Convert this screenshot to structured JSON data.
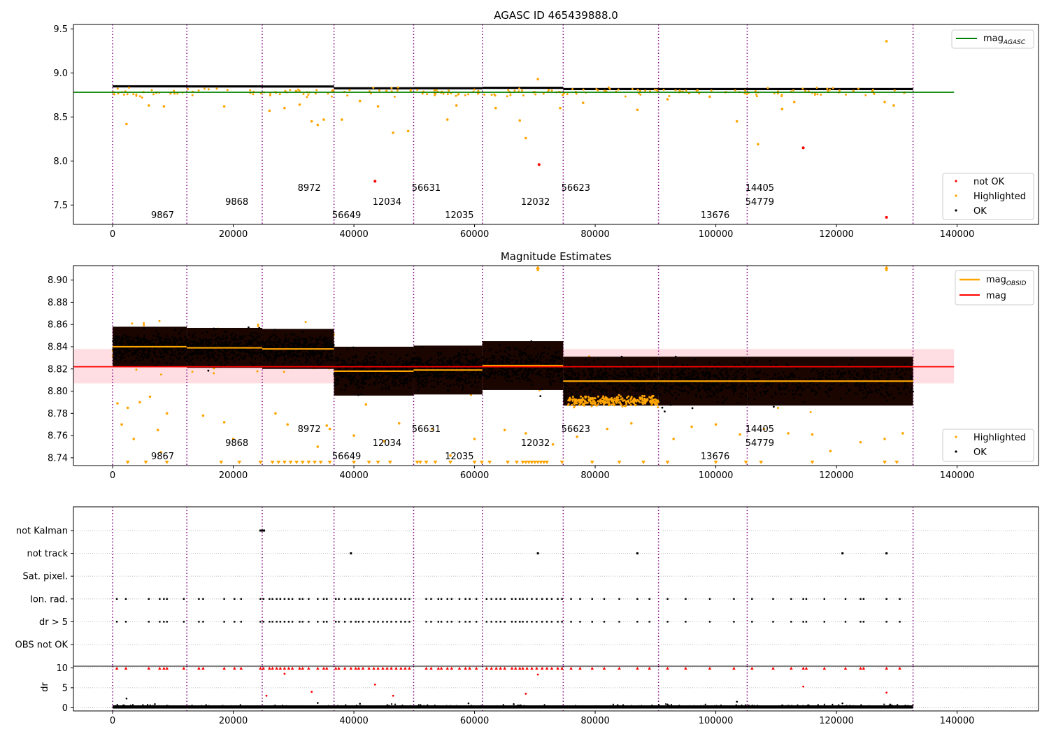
{
  "colors": {
    "ok": "#000000",
    "highlighted": "#ffa500",
    "not_ok": "#ff0000",
    "mag_agasc_line": "#008000",
    "mag_line": "#ff0000",
    "mag_band": "#ffb6c1",
    "mag_obsid_line": "#ffa500",
    "obsid_boundary": "#800080",
    "grid": "#b0b0b0"
  },
  "obsids": [
    {
      "id": "9867",
      "start": 0,
      "end": 12300,
      "mag": 8.84,
      "label_x": 6200,
      "label_row": 2
    },
    {
      "id": "9868",
      "start": 12300,
      "end": 24800,
      "mag": 8.839,
      "label_x": 18500,
      "label_row": 1
    },
    {
      "id": "8972",
      "start": 24800,
      "end": 36700,
      "mag": 8.838,
      "label_x": 30500,
      "label_row": 0
    },
    {
      "id": "56649",
      "start": 36700,
      "end": 49900,
      "mag": 8.818,
      "label_x": 36700,
      "label_row": 2
    },
    {
      "id": "12034",
      "start": 49900,
      "end": 61300,
      "mag": 8.819,
      "label_x": 43400,
      "label_row": 1
    },
    {
      "id": "56631",
      "start": 61300,
      "end": 74700,
      "mag": 8.823,
      "label_x": 49900,
      "label_row": 0
    },
    {
      "id": "12035",
      "start": 74700,
      "end": 90500,
      "mag": 8.809,
      "label_x": 55400,
      "label_row": 2
    },
    {
      "id": "12032",
      "start": 90500,
      "end": 105200,
      "mag": 8.809,
      "label_x": 68000,
      "label_row": 1
    },
    {
      "id": "56623",
      "start": 105200,
      "end": 132700,
      "mag": 8.809,
      "label_x": 74700,
      "label_row": 0
    },
    {
      "id": "13676",
      "start": null,
      "end": null,
      "mag": null,
      "label_x": 97800,
      "label_row": 2
    },
    {
      "id": "14405",
      "start": null,
      "end": null,
      "mag": null,
      "label_x": 105200,
      "label_row": 0
    },
    {
      "id": "54779",
      "start": null,
      "end": null,
      "mag": null,
      "label_x": 105200,
      "label_row": 1
    }
  ],
  "chart_data": [
    {
      "type": "scatter",
      "title": "AGASC ID 465439888.0",
      "xlim": [
        -6500,
        153500
      ],
      "ylim": [
        7.28,
        9.55
      ],
      "xticks": [
        0,
        20000,
        40000,
        60000,
        80000,
        100000,
        120000,
        140000
      ],
      "xtick_labels": [
        "0",
        "20000",
        "40000",
        "60000",
        "80000",
        "100000",
        "120000",
        "140000"
      ],
      "yticks": [
        7.5,
        8.0,
        8.5,
        9.0,
        9.5
      ],
      "ytick_labels": [
        "7.5",
        "8.0",
        "8.5",
        "9.0",
        "9.5"
      ],
      "mag_agasc": 8.78,
      "mag_agasc_x_range": [
        -6500,
        139500
      ],
      "legend_top": {
        "position": "top-right",
        "entries": [
          {
            "name": "mag",
            "sub": "AGASC"
          }
        ]
      },
      "legend_bottom": {
        "position": "bottom-right",
        "entries": [
          "not OK",
          "Highlighted",
          "OK"
        ]
      },
      "not_ok_points": [
        [
          43500,
          7.77
        ],
        [
          70700,
          7.96
        ],
        [
          114500,
          8.15
        ],
        [
          128300,
          7.36
        ]
      ],
      "highlighted_points": [
        [
          2300,
          8.42
        ],
        [
          6000,
          8.63
        ],
        [
          8500,
          8.62
        ],
        [
          18500,
          8.62
        ],
        [
          26000,
          8.57
        ],
        [
          28500,
          8.6
        ],
        [
          31000,
          8.64
        ],
        [
          33000,
          8.45
        ],
        [
          34000,
          8.41
        ],
        [
          35000,
          8.47
        ],
        [
          38000,
          8.47
        ],
        [
          41000,
          8.68
        ],
        [
          44000,
          8.62
        ],
        [
          46500,
          8.32
        ],
        [
          49000,
          8.34
        ],
        [
          55500,
          8.47
        ],
        [
          57000,
          8.63
        ],
        [
          63500,
          8.6
        ],
        [
          67500,
          8.46
        ],
        [
          68500,
          8.26
        ],
        [
          70500,
          8.93
        ],
        [
          74200,
          8.6
        ],
        [
          78000,
          8.66
        ],
        [
          87000,
          8.58
        ],
        [
          92000,
          8.7
        ],
        [
          99000,
          8.73
        ],
        [
          103500,
          8.45
        ],
        [
          107000,
          8.19
        ],
        [
          111000,
          8.59
        ],
        [
          113000,
          8.67
        ],
        [
          128300,
          9.36
        ],
        [
          128000,
          8.67
        ],
        [
          129500,
          8.63
        ]
      ]
    },
    {
      "type": "scatter",
      "title": "Magnitude Estimates",
      "xlim": [
        -6500,
        153500
      ],
      "ylim": [
        8.733,
        8.913
      ],
      "xticks": [
        0,
        20000,
        40000,
        60000,
        80000,
        100000,
        120000,
        140000
      ],
      "xtick_labels": [
        "0",
        "20000",
        "40000",
        "60000",
        "80000",
        "100000",
        "120000",
        "140000"
      ],
      "yticks": [
        8.74,
        8.76,
        8.78,
        8.8,
        8.82,
        8.84,
        8.86,
        8.88,
        8.9
      ],
      "ytick_labels": [
        "8.74",
        "8.76",
        "8.78",
        "8.80",
        "8.82",
        "8.84",
        "8.86",
        "8.88",
        "8.90"
      ],
      "mag": 8.822,
      "mag_band": [
        8.807,
        8.838
      ],
      "mag_x_range": [
        -6500,
        139500
      ],
      "legend_top": {
        "position": "top-right",
        "entries": [
          {
            "name": "mag",
            "sub": "OBSID"
          },
          {
            "name": "mag",
            "sub": ""
          }
        ]
      },
      "legend_bottom": {
        "position": "bottom-right",
        "entries": [
          "Highlighted",
          "OK"
        ]
      },
      "highlighted_points": [
        [
          800,
          8.789
        ],
        [
          1500,
          8.77
        ],
        [
          2500,
          8.785
        ],
        [
          3500,
          8.757
        ],
        [
          4500,
          8.79
        ],
        [
          6200,
          8.795
        ],
        [
          7500,
          8.765
        ],
        [
          8000,
          8.745
        ],
        [
          9000,
          8.78
        ],
        [
          15000,
          8.778
        ],
        [
          18500,
          8.772
        ],
        [
          20000,
          8.757
        ],
        [
          27000,
          8.78
        ],
        [
          29000,
          8.77
        ],
        [
          34000,
          8.75
        ],
        [
          35500,
          8.769
        ],
        [
          36000,
          8.766
        ],
        [
          40000,
          8.76
        ],
        [
          42000,
          8.788
        ],
        [
          45000,
          8.755
        ],
        [
          47500,
          8.771
        ],
        [
          53000,
          8.766
        ],
        [
          56000,
          8.742
        ],
        [
          60000,
          8.757
        ],
        [
          65000,
          8.765
        ],
        [
          68500,
          8.762
        ],
        [
          70500,
          8.909
        ],
        [
          73000,
          8.752
        ],
        [
          77000,
          8.759
        ],
        [
          82000,
          8.766
        ],
        [
          86000,
          8.771
        ],
        [
          93000,
          8.757
        ],
        [
          96000,
          8.768
        ],
        [
          100000,
          8.77
        ],
        [
          104000,
          8.761
        ],
        [
          108000,
          8.766
        ],
        [
          112000,
          8.762
        ],
        [
          116000,
          8.761
        ],
        [
          119000,
          8.746
        ],
        [
          124000,
          8.754
        ],
        [
          128300,
          8.909
        ],
        [
          128000,
          8.757
        ],
        [
          131000,
          8.762
        ]
      ],
      "low_markers_x": [
        2500,
        5500,
        9000,
        18000,
        21000,
        24500,
        26500,
        27500,
        28500,
        29500,
        30500,
        31500,
        32500,
        33500,
        34500,
        36000,
        40000,
        42500,
        44000,
        46000,
        50500,
        51000,
        52000,
        53500,
        56000,
        60000,
        61200,
        62500,
        65500,
        67000,
        68000,
        68500,
        69000,
        69500,
        70000,
        70500,
        71000,
        71500,
        72000,
        74500,
        79500,
        84000,
        88000,
        92000,
        100000,
        105000,
        107500,
        116000,
        128000,
        130000
      ]
    },
    {
      "type": "scatter",
      "title": "",
      "xlim": [
        -6500,
        153500
      ],
      "categories": [
        "not Kalman",
        "not track",
        "Sat. pixel.",
        "Ion. rad.",
        "dr > 5",
        "OBS not OK"
      ],
      "not_kalman_x": [
        24500,
        24700,
        24900,
        25100
      ],
      "not_track_x": [
        39500,
        70500,
        87000,
        121000,
        128300
      ],
      "flag_x": [
        700,
        2200,
        6000,
        7800,
        8500,
        9000,
        11800,
        14300,
        15000,
        18500,
        20200,
        21300,
        24500,
        25000,
        26000,
        26500,
        27200,
        27800,
        28500,
        29200,
        29800,
        31000,
        31500,
        32500,
        34000,
        35000,
        35500,
        37000,
        37500,
        38500,
        39500,
        40300,
        40800,
        41500,
        42500,
        43300,
        44000,
        44800,
        45500,
        46200,
        47000,
        47800,
        48500,
        49200,
        52000,
        52800,
        54000,
        54500,
        55500,
        56200,
        57500,
        58500,
        59200,
        60300,
        62000,
        62800,
        63600,
        64300,
        65000,
        66200,
        66800,
        67500,
        68000,
        68700,
        69500,
        70300,
        71200,
        72000,
        72800,
        73800,
        74500,
        76000,
        77500,
        79500,
        81500,
        84000,
        87000,
        89000,
        92000,
        95000,
        99000,
        103000,
        106000,
        109500,
        112500,
        114500,
        115000,
        118000,
        121500,
        124000,
        124500,
        128300,
        130500
      ]
    },
    {
      "type": "scatter",
      "title": "",
      "ylabel": "dr",
      "xlim": [
        -6500,
        153500
      ],
      "ylim": [
        -0.8,
        10.4
      ],
      "xticks": [
        0,
        20000,
        40000,
        60000,
        80000,
        100000,
        120000,
        140000
      ],
      "xtick_labels": [
        "0",
        "20000",
        "40000",
        "60000",
        "80000",
        "100000",
        "120000",
        "140000"
      ],
      "yticks": [
        0,
        5,
        10
      ],
      "ytick_labels": [
        "0",
        "5",
        "10"
      ],
      "red_points": [
        [
          25500,
          3.0
        ],
        [
          28500,
          8.5
        ],
        [
          33000,
          4.0
        ],
        [
          43500,
          5.8
        ],
        [
          46500,
          3.0
        ],
        [
          68500,
          3.5
        ],
        [
          70500,
          8.3
        ],
        [
          114500,
          5.3
        ],
        [
          128300,
          3.8
        ]
      ],
      "black_outliers": [
        [
          2300,
          2.3
        ],
        [
          7000,
          0.9
        ],
        [
          34000,
          1.2
        ],
        [
          41000,
          1.0
        ],
        [
          59000,
          1.1
        ],
        [
          66500,
          0.9
        ],
        [
          92000,
          0.8
        ],
        [
          103500,
          1.5
        ],
        [
          121000,
          1.1
        ]
      ]
    }
  ]
}
